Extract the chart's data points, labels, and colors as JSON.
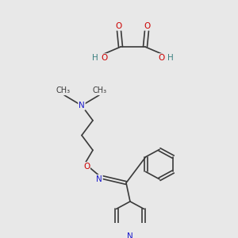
{
  "bg_color": "#e8e8e8",
  "bond_color": "#3a3a3a",
  "N_color": "#1a1acc",
  "O_color": "#cc0000",
  "H_color": "#3a8080",
  "line_width": 1.2,
  "font_size": 7.5,
  "fig_size": [
    3.0,
    3.0
  ],
  "dpi": 100,
  "xlim": [
    0,
    300
  ],
  "ylim": [
    300,
    0
  ]
}
